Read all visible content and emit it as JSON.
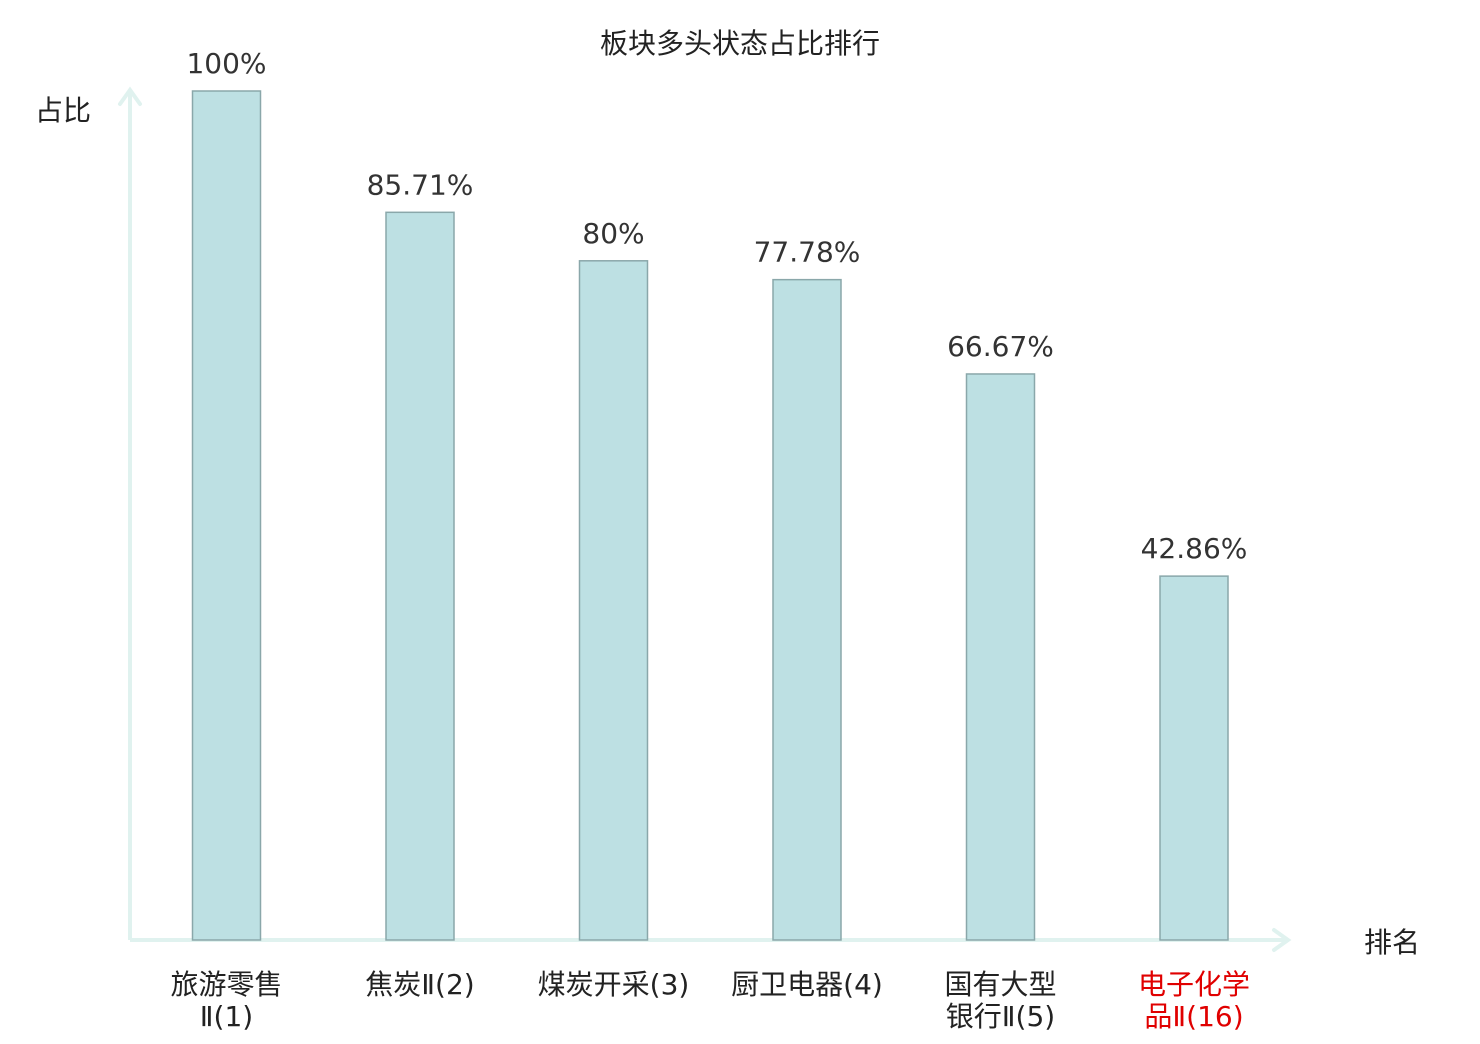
{
  "chart_data": {
    "type": "bar",
    "title": "板块多头状态占比排行",
    "ylabel": "占比",
    "xlabel": "排名",
    "ylim": [
      0,
      100
    ],
    "grid": false,
    "categories": [
      {
        "name_lines": [
          "旅游零售",
          "Ⅱ(1)"
        ],
        "highlight": false
      },
      {
        "name_lines": [
          "焦炭Ⅱ(2)"
        ],
        "highlight": false
      },
      {
        "name_lines": [
          "煤炭开采(3)"
        ],
        "highlight": false
      },
      {
        "name_lines": [
          "厨卫电器(4)"
        ],
        "highlight": false
      },
      {
        "name_lines": [
          "国有大型",
          "银行Ⅱ(5)"
        ],
        "highlight": false
      },
      {
        "name_lines": [
          "电子化学",
          "品Ⅱ(16)"
        ],
        "highlight": true
      }
    ],
    "values": [
      100,
      85.71,
      80,
      77.78,
      66.67,
      42.86
    ],
    "value_labels": [
      "100%",
      "85.71%",
      "80%",
      "77.78%",
      "66.67%",
      "42.86%"
    ],
    "colors": {
      "bar_fill": "#bde0e3",
      "bar_stroke": "#8aa7aa",
      "axis": "#e0f2ef",
      "text": "#222222",
      "highlight_text": "#e00000"
    }
  }
}
